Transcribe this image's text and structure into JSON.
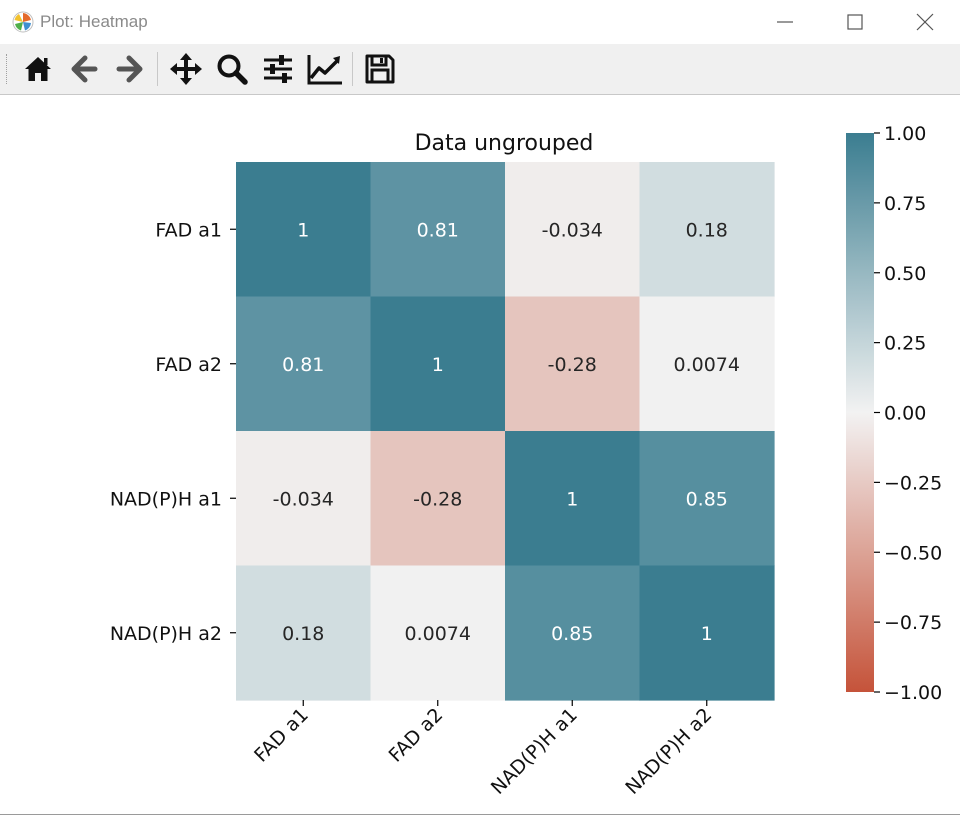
{
  "window": {
    "title": "Plot: Heatmap",
    "controls": [
      "minimize",
      "maximize",
      "close"
    ]
  },
  "toolbar": {
    "buttons": [
      {
        "name": "home",
        "icon": "home-icon"
      },
      {
        "name": "back",
        "icon": "arrow-left-icon"
      },
      {
        "name": "forward",
        "icon": "arrow-right-icon"
      },
      {
        "name": "pan",
        "icon": "move-icon"
      },
      {
        "name": "zoom",
        "icon": "zoom-icon"
      },
      {
        "name": "configure-subplots",
        "icon": "sliders-icon"
      },
      {
        "name": "edit-axis",
        "icon": "line-chart-icon"
      },
      {
        "name": "save",
        "icon": "save-icon"
      }
    ]
  },
  "chart_data": {
    "type": "heatmap",
    "title": "Data ungrouped",
    "xlabel": "",
    "ylabel": "",
    "categories_x": [
      "FAD a1",
      "FAD a2",
      "NAD(P)H a1",
      "NAD(P)H a2"
    ],
    "categories_y": [
      "FAD a1",
      "FAD a2",
      "NAD(P)H a1",
      "NAD(P)H a2"
    ],
    "values": [
      [
        1,
        0.81,
        -0.034,
        0.18
      ],
      [
        0.81,
        1,
        -0.28,
        0.0074
      ],
      [
        -0.034,
        -0.28,
        1,
        0.85
      ],
      [
        0.18,
        0.0074,
        0.85,
        1
      ]
    ],
    "labels": [
      [
        "1",
        "0.81",
        "-0.034",
        "0.18"
      ],
      [
        "0.81",
        "1",
        "-0.28",
        "0.0074"
      ],
      [
        "-0.034",
        "-0.28",
        "1",
        "0.85"
      ],
      [
        "0.18",
        "0.0074",
        "0.85",
        "1"
      ]
    ],
    "vmin": -1.0,
    "vmax": 1.0,
    "colormap": {
      "negative": "#c5533a",
      "center": "#f2f2f2",
      "positive": "#3b7d90"
    },
    "colorbar": {
      "ticks": [
        1.0,
        0.75,
        0.5,
        0.25,
        0.0,
        -0.25,
        -0.5,
        -0.75,
        -1.0
      ],
      "tick_labels": [
        "1.00",
        "0.75",
        "0.50",
        "0.25",
        "0.00",
        "−0.25",
        "−0.50",
        "−0.75",
        "−1.00"
      ],
      "position": "right"
    },
    "x_tick_rotation_deg": 45
  }
}
